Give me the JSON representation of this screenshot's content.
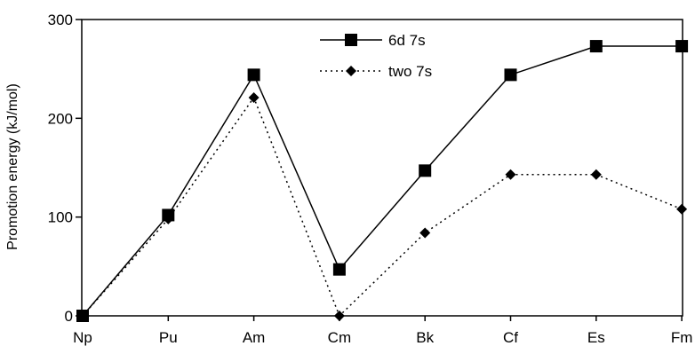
{
  "chart_data": {
    "type": "line",
    "categories": [
      "Np",
      "Pu",
      "Am",
      "Cm",
      "Bk",
      "Cf",
      "Es",
      "Fm"
    ],
    "title": "",
    "xlabel": "",
    "ylabel": "Promotion energy (kJ/mol)",
    "ylim": [
      0,
      300
    ],
    "yticks": [
      0,
      100,
      200,
      300
    ],
    "grid": false,
    "legend_position": "top-center",
    "series": [
      {
        "name": "6d 7s",
        "marker": "square",
        "line_style": "solid",
        "color": "#000000",
        "values": [
          0,
          102,
          244,
          47,
          147,
          244,
          273,
          273
        ]
      },
      {
        "name": "two 7s",
        "marker": "diamond",
        "line_style": "dotted",
        "color": "#000000",
        "values": [
          0,
          98,
          221,
          0,
          84,
          143,
          143,
          108
        ]
      }
    ]
  }
}
